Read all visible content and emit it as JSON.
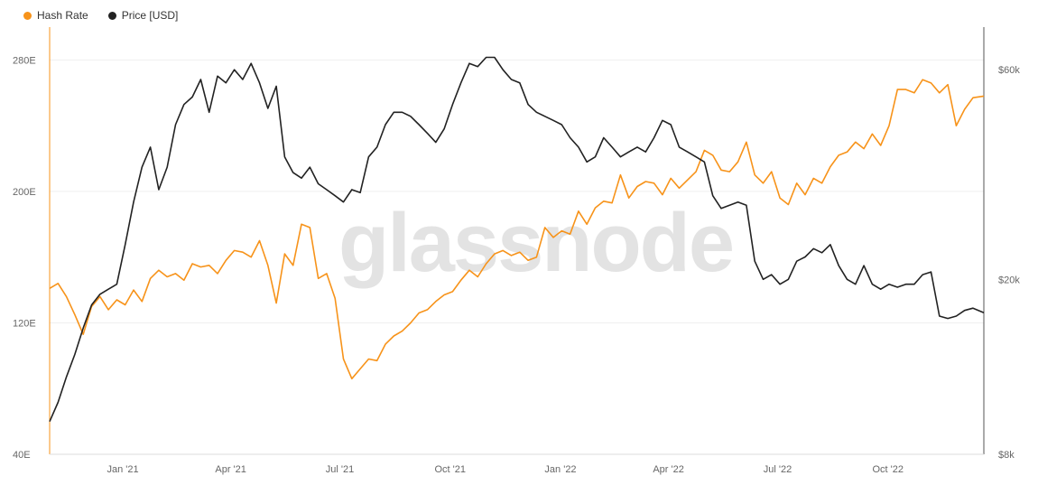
{
  "watermark": "glassnode",
  "chart_data": {
    "type": "line",
    "title": "",
    "xlabel": "",
    "x_ticks": [
      "Jan '21",
      "Apr '21",
      "Jul '21",
      "Oct '21",
      "Jan '22",
      "Apr '22",
      "Jul '22",
      "Oct '22"
    ],
    "x_range": [
      "2020-11-01",
      "2022-12-20"
    ],
    "y_left": {
      "ticks": [
        "40E",
        "120E",
        "200E",
        "280E"
      ],
      "range": [
        40,
        300
      ],
      "unit": "EH/s"
    },
    "y_right": {
      "scale": "log",
      "ticks": [
        "$8k",
        "$20k",
        "$60k"
      ],
      "range": [
        8000,
        75000
      ]
    },
    "grid": true,
    "legend_position": "top-left",
    "series": [
      {
        "name": "Hash Rate",
        "color": "#f7931a",
        "axis": "left",
        "points": [
          [
            "2020-11-01",
            141
          ],
          [
            "2020-11-08",
            144
          ],
          [
            "2020-11-15",
            136
          ],
          [
            "2020-11-22",
            125
          ],
          [
            "2020-11-29",
            113
          ],
          [
            "2020-12-06",
            130
          ],
          [
            "2020-12-13",
            136
          ],
          [
            "2020-12-20",
            128
          ],
          [
            "2020-12-27",
            134
          ],
          [
            "2021-01-03",
            131
          ],
          [
            "2021-01-10",
            140
          ],
          [
            "2021-01-17",
            133
          ],
          [
            "2021-01-24",
            147
          ],
          [
            "2021-01-31",
            152
          ],
          [
            "2021-02-07",
            148
          ],
          [
            "2021-02-14",
            150
          ],
          [
            "2021-02-21",
            146
          ],
          [
            "2021-02-28",
            156
          ],
          [
            "2021-03-07",
            154
          ],
          [
            "2021-03-14",
            155
          ],
          [
            "2021-03-21",
            150
          ],
          [
            "2021-03-28",
            158
          ],
          [
            "2021-04-04",
            164
          ],
          [
            "2021-04-11",
            163
          ],
          [
            "2021-04-18",
            160
          ],
          [
            "2021-04-25",
            170
          ],
          [
            "2021-05-02",
            155
          ],
          [
            "2021-05-09",
            132
          ],
          [
            "2021-05-16",
            162
          ],
          [
            "2021-05-23",
            155
          ],
          [
            "2021-05-30",
            180
          ],
          [
            "2021-06-06",
            178
          ],
          [
            "2021-06-13",
            147
          ],
          [
            "2021-06-20",
            150
          ],
          [
            "2021-06-27",
            135
          ],
          [
            "2021-07-04",
            98
          ],
          [
            "2021-07-11",
            86
          ],
          [
            "2021-07-18",
            92
          ],
          [
            "2021-07-25",
            98
          ],
          [
            "2021-08-01",
            97
          ],
          [
            "2021-08-08",
            107
          ],
          [
            "2021-08-15",
            112
          ],
          [
            "2021-08-22",
            115
          ],
          [
            "2021-08-29",
            120
          ],
          [
            "2021-09-05",
            126
          ],
          [
            "2021-09-12",
            128
          ],
          [
            "2021-09-19",
            133
          ],
          [
            "2021-09-26",
            137
          ],
          [
            "2021-10-03",
            139
          ],
          [
            "2021-10-10",
            146
          ],
          [
            "2021-10-17",
            152
          ],
          [
            "2021-10-24",
            148
          ],
          [
            "2021-10-31",
            156
          ],
          [
            "2021-11-07",
            162
          ],
          [
            "2021-11-14",
            164
          ],
          [
            "2021-11-21",
            161
          ],
          [
            "2021-11-28",
            163
          ],
          [
            "2021-12-05",
            158
          ],
          [
            "2021-12-12",
            160
          ],
          [
            "2021-12-19",
            178
          ],
          [
            "2021-12-26",
            172
          ],
          [
            "2022-01-02",
            176
          ],
          [
            "2022-01-09",
            174
          ],
          [
            "2022-01-16",
            188
          ],
          [
            "2022-01-23",
            180
          ],
          [
            "2022-01-30",
            190
          ],
          [
            "2022-02-06",
            194
          ],
          [
            "2022-02-13",
            193
          ],
          [
            "2022-02-20",
            210
          ],
          [
            "2022-02-27",
            196
          ],
          [
            "2022-03-06",
            203
          ],
          [
            "2022-03-13",
            206
          ],
          [
            "2022-03-20",
            205
          ],
          [
            "2022-03-27",
            198
          ],
          [
            "2022-04-03",
            208
          ],
          [
            "2022-04-10",
            202
          ],
          [
            "2022-04-17",
            207
          ],
          [
            "2022-04-24",
            212
          ],
          [
            "2022-05-01",
            225
          ],
          [
            "2022-05-08",
            222
          ],
          [
            "2022-05-15",
            213
          ],
          [
            "2022-05-22",
            212
          ],
          [
            "2022-05-29",
            218
          ],
          [
            "2022-06-05",
            230
          ],
          [
            "2022-06-12",
            210
          ],
          [
            "2022-06-19",
            205
          ],
          [
            "2022-06-26",
            212
          ],
          [
            "2022-07-03",
            196
          ],
          [
            "2022-07-10",
            192
          ],
          [
            "2022-07-17",
            205
          ],
          [
            "2022-07-24",
            198
          ],
          [
            "2022-07-31",
            208
          ],
          [
            "2022-08-07",
            205
          ],
          [
            "2022-08-14",
            215
          ],
          [
            "2022-08-21",
            222
          ],
          [
            "2022-08-28",
            224
          ],
          [
            "2022-09-04",
            230
          ],
          [
            "2022-09-11",
            226
          ],
          [
            "2022-09-18",
            235
          ],
          [
            "2022-09-25",
            228
          ],
          [
            "2022-10-02",
            240
          ],
          [
            "2022-10-09",
            262
          ],
          [
            "2022-10-16",
            262
          ],
          [
            "2022-10-23",
            260
          ],
          [
            "2022-10-30",
            268
          ],
          [
            "2022-11-06",
            266
          ],
          [
            "2022-11-13",
            260
          ],
          [
            "2022-11-20",
            265
          ],
          [
            "2022-11-27",
            240
          ],
          [
            "2022-12-04",
            250
          ],
          [
            "2022-12-11",
            257
          ],
          [
            "2022-12-20",
            258
          ]
        ]
      },
      {
        "name": "Price [USD]",
        "color": "#222222",
        "axis": "right",
        "points": [
          [
            "2020-11-01",
            9500
          ],
          [
            "2020-11-08",
            10500
          ],
          [
            "2020-11-15",
            12000
          ],
          [
            "2020-11-22",
            13500
          ],
          [
            "2020-11-29",
            15500
          ],
          [
            "2020-12-06",
            17500
          ],
          [
            "2020-12-13",
            18500
          ],
          [
            "2020-12-20",
            19000
          ],
          [
            "2020-12-27",
            19500
          ],
          [
            "2021-01-03",
            24000
          ],
          [
            "2021-01-10",
            30000
          ],
          [
            "2021-01-17",
            36000
          ],
          [
            "2021-01-24",
            40000
          ],
          [
            "2021-01-31",
            32000
          ],
          [
            "2021-02-07",
            36000
          ],
          [
            "2021-02-14",
            45000
          ],
          [
            "2021-02-21",
            50000
          ],
          [
            "2021-02-28",
            52000
          ],
          [
            "2021-03-07",
            57000
          ],
          [
            "2021-03-14",
            48000
          ],
          [
            "2021-03-21",
            58000
          ],
          [
            "2021-03-28",
            56000
          ],
          [
            "2021-04-04",
            60000
          ],
          [
            "2021-04-11",
            57000
          ],
          [
            "2021-04-18",
            62000
          ],
          [
            "2021-04-25",
            56000
          ],
          [
            "2021-05-02",
            49000
          ],
          [
            "2021-05-09",
            55000
          ],
          [
            "2021-05-16",
            38000
          ],
          [
            "2021-05-23",
            35000
          ],
          [
            "2021-05-30",
            34000
          ],
          [
            "2021-06-06",
            36000
          ],
          [
            "2021-06-13",
            33000
          ],
          [
            "2021-06-20",
            32000
          ],
          [
            "2021-06-27",
            31000
          ],
          [
            "2021-07-04",
            30000
          ],
          [
            "2021-07-11",
            32000
          ],
          [
            "2021-07-18",
            31500
          ],
          [
            "2021-07-25",
            38000
          ],
          [
            "2021-08-01",
            40000
          ],
          [
            "2021-08-08",
            45000
          ],
          [
            "2021-08-15",
            48000
          ],
          [
            "2021-08-22",
            48000
          ],
          [
            "2021-08-29",
            47000
          ],
          [
            "2021-09-05",
            45000
          ],
          [
            "2021-09-12",
            43000
          ],
          [
            "2021-09-19",
            41000
          ],
          [
            "2021-09-26",
            44000
          ],
          [
            "2021-10-03",
            50000
          ],
          [
            "2021-10-10",
            56000
          ],
          [
            "2021-10-17",
            62000
          ],
          [
            "2021-10-24",
            61000
          ],
          [
            "2021-10-31",
            64000
          ],
          [
            "2021-11-07",
            64000
          ],
          [
            "2021-11-14",
            60000
          ],
          [
            "2021-11-21",
            57000
          ],
          [
            "2021-11-28",
            56000
          ],
          [
            "2021-12-05",
            50000
          ],
          [
            "2021-12-12",
            48000
          ],
          [
            "2021-12-19",
            47000
          ],
          [
            "2021-12-26",
            46000
          ],
          [
            "2022-01-02",
            45000
          ],
          [
            "2022-01-09",
            42000
          ],
          [
            "2022-01-16",
            40000
          ],
          [
            "2022-01-23",
            37000
          ],
          [
            "2022-01-30",
            38000
          ],
          [
            "2022-02-06",
            42000
          ],
          [
            "2022-02-13",
            40000
          ],
          [
            "2022-02-20",
            38000
          ],
          [
            "2022-02-27",
            39000
          ],
          [
            "2022-03-06",
            40000
          ],
          [
            "2022-03-13",
            39000
          ],
          [
            "2022-03-20",
            42000
          ],
          [
            "2022-03-27",
            46000
          ],
          [
            "2022-04-03",
            45000
          ],
          [
            "2022-04-10",
            40000
          ],
          [
            "2022-04-17",
            39000
          ],
          [
            "2022-04-24",
            38000
          ],
          [
            "2022-05-01",
            37000
          ],
          [
            "2022-05-08",
            31000
          ],
          [
            "2022-05-15",
            29000
          ],
          [
            "2022-05-22",
            29500
          ],
          [
            "2022-05-29",
            30000
          ],
          [
            "2022-06-05",
            29500
          ],
          [
            "2022-06-12",
            22000
          ],
          [
            "2022-06-19",
            20000
          ],
          [
            "2022-06-26",
            20500
          ],
          [
            "2022-07-03",
            19500
          ],
          [
            "2022-07-10",
            20000
          ],
          [
            "2022-07-17",
            22000
          ],
          [
            "2022-07-24",
            22500
          ],
          [
            "2022-07-31",
            23500
          ],
          [
            "2022-08-07",
            23000
          ],
          [
            "2022-08-14",
            24000
          ],
          [
            "2022-08-21",
            21500
          ],
          [
            "2022-08-28",
            20000
          ],
          [
            "2022-09-04",
            19500
          ],
          [
            "2022-09-11",
            21500
          ],
          [
            "2022-09-18",
            19500
          ],
          [
            "2022-09-25",
            19000
          ],
          [
            "2022-10-02",
            19500
          ],
          [
            "2022-10-09",
            19200
          ],
          [
            "2022-10-16",
            19500
          ],
          [
            "2022-10-23",
            19500
          ],
          [
            "2022-10-30",
            20500
          ],
          [
            "2022-11-06",
            20800
          ],
          [
            "2022-11-13",
            16500
          ],
          [
            "2022-11-20",
            16300
          ],
          [
            "2022-11-27",
            16500
          ],
          [
            "2022-12-04",
            17000
          ],
          [
            "2022-12-11",
            17200
          ],
          [
            "2022-12-20",
            16800
          ]
        ]
      }
    ]
  }
}
